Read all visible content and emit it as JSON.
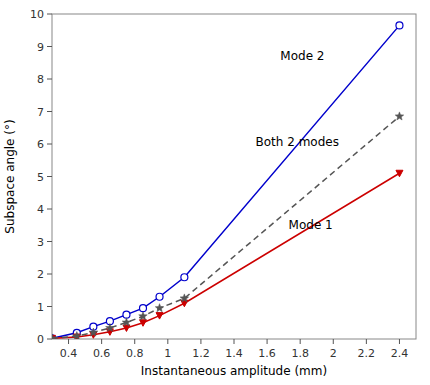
{
  "chart_data": {
    "type": "line",
    "x_label": "Instantaneous amplitude (mm)",
    "y_label": "Subspace angle (°)",
    "xlim": [
      0.3,
      2.5
    ],
    "ylim": [
      0,
      10
    ],
    "xticks": [
      0.4,
      0.6,
      0.8,
      1.0,
      1.2,
      1.4,
      1.6,
      1.8,
      2.0,
      2.2,
      2.4
    ],
    "yticks": [
      0,
      1,
      2,
      3,
      4,
      5,
      6,
      7,
      8,
      9,
      10
    ],
    "x": [
      0.3,
      0.45,
      0.55,
      0.65,
      0.75,
      0.85,
      0.95,
      1.1,
      2.4
    ],
    "series": [
      {
        "color": "#0000cc",
        "marker": "circle-open",
        "line_style": "solid",
        "values": [
          0.02,
          0.19,
          0.38,
          0.55,
          0.75,
          0.95,
          1.3,
          1.9,
          9.65
        ]
      },
      {
        "color": "#cc0000",
        "marker": "triangle-down",
        "line_style": "solid",
        "values": [
          0.02,
          0.06,
          0.13,
          0.22,
          0.34,
          0.5,
          0.72,
          1.1,
          5.1
        ]
      },
      {
        "color": "#555555",
        "marker": "star",
        "line_style": "dashed",
        "values": [
          0.02,
          0.09,
          0.2,
          0.34,
          0.51,
          0.7,
          0.95,
          1.25,
          6.85
        ]
      }
    ],
    "annotations": [
      {
        "text": "Mode 2",
        "x": 1.68,
        "y": 8.5
      },
      {
        "text": "Mode 1",
        "x": 1.73,
        "y": 3.3
      },
      {
        "text": "Both 2 modes",
        "x": 1.53,
        "y": 5.85
      }
    ]
  }
}
